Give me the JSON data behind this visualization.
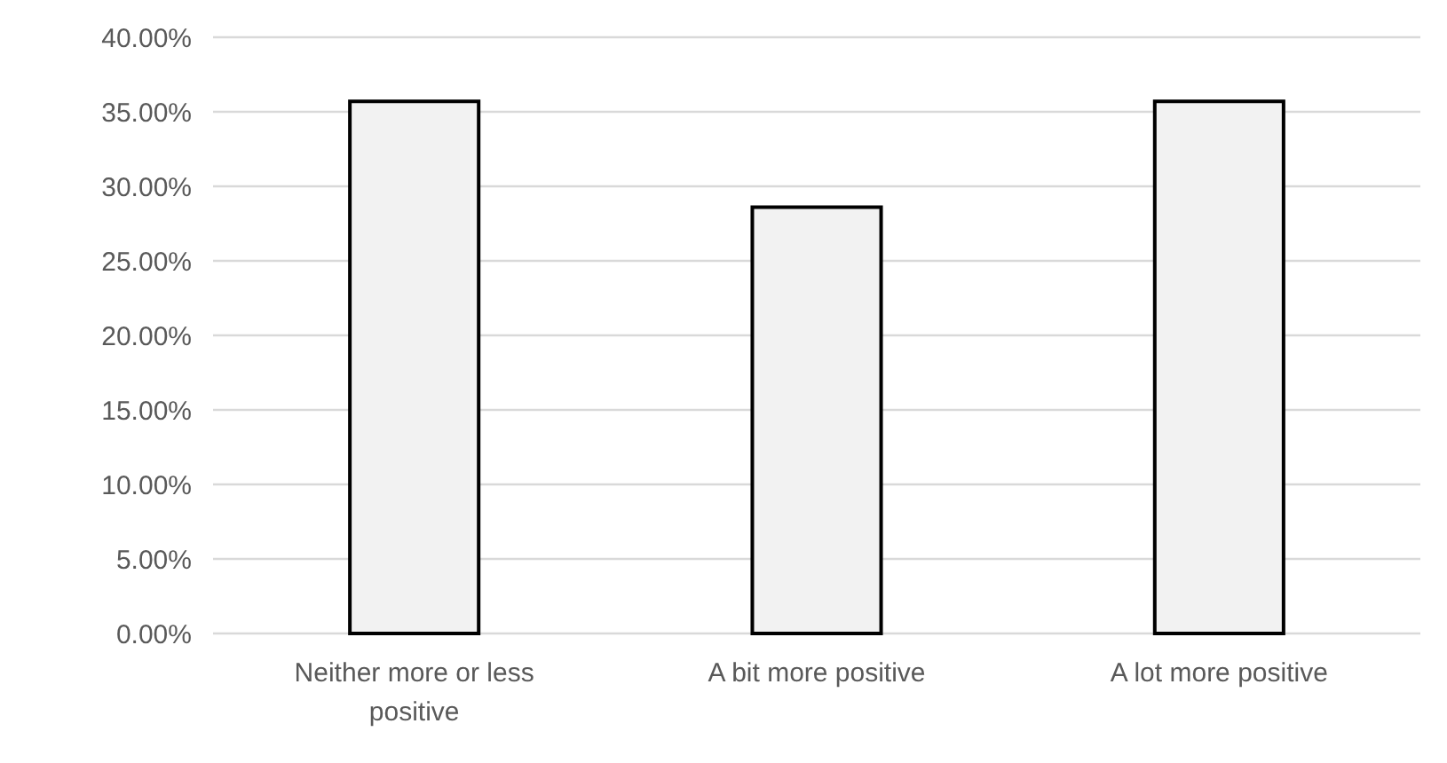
{
  "chart_data": {
    "type": "bar",
    "categories": [
      "Neither more or less positive",
      "A bit more positive",
      "A lot more positive"
    ],
    "values": [
      35.7,
      28.6,
      35.7
    ],
    "color": "#f2f2f2",
    "ylim": [
      0,
      40
    ],
    "yticks": [
      {
        "value": 0,
        "label": "0.00%"
      },
      {
        "value": 5,
        "label": "5.00%"
      },
      {
        "value": 10,
        "label": "10.00%"
      },
      {
        "value": 15,
        "label": "15.00%"
      },
      {
        "value": 20,
        "label": "20.00%"
      },
      {
        "value": 25,
        "label": "25.00%"
      },
      {
        "value": 30,
        "label": "30.00%"
      },
      {
        "value": 35,
        "label": "35.00%"
      },
      {
        "value": 40,
        "label": "40.00%"
      }
    ],
    "grid": "y"
  }
}
